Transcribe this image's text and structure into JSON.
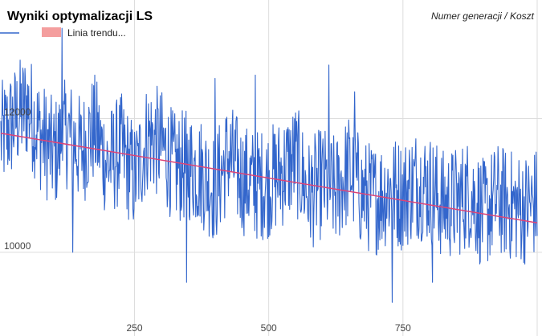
{
  "chart_data": {
    "type": "line",
    "title": "Wyniki optymalizacji LS",
    "subtitle": "Numer generacji / Koszt",
    "x_range": [
      1,
      1000
    ],
    "y_range": [
      9000,
      13400
    ],
    "x_ticks": [
      {
        "value": 250,
        "label": "250"
      },
      {
        "value": 500,
        "label": "500"
      },
      {
        "value": 750,
        "label": "750"
      }
    ],
    "y_ticks": [
      {
        "value": 10000,
        "label": "10000"
      },
      {
        "value": 12000,
        "label": "12000"
      }
    ],
    "grid": true,
    "legend_position": "top-left",
    "series": [
      {
        "name": "",
        "color": "#3366cc",
        "anchors": [
          [
            1,
            11700
          ],
          [
            25,
            11950
          ],
          [
            50,
            12200
          ],
          [
            75,
            11750
          ],
          [
            100,
            11450
          ],
          [
            125,
            11800
          ],
          [
            150,
            11500
          ],
          [
            175,
            11850
          ],
          [
            200,
            11300
          ],
          [
            225,
            11550
          ],
          [
            250,
            11100
          ],
          [
            275,
            11750
          ],
          [
            300,
            11600
          ],
          [
            325,
            11250
          ],
          [
            350,
            11300
          ],
          [
            375,
            11200
          ],
          [
            400,
            10950
          ],
          [
            425,
            11450
          ],
          [
            450,
            11100
          ],
          [
            475,
            11000
          ],
          [
            500,
            11050
          ],
          [
            525,
            11200
          ],
          [
            550,
            11400
          ],
          [
            575,
            10850
          ],
          [
            600,
            11050
          ],
          [
            625,
            10900
          ],
          [
            650,
            11250
          ],
          [
            675,
            10850
          ],
          [
            700,
            10800
          ],
          [
            725,
            10950
          ],
          [
            750,
            10850
          ],
          [
            775,
            11050
          ],
          [
            800,
            10950
          ],
          [
            825,
            10700
          ],
          [
            850,
            10750
          ],
          [
            875,
            10900
          ],
          [
            900,
            10550
          ],
          [
            925,
            10800
          ],
          [
            950,
            10700
          ],
          [
            975,
            10650
          ],
          [
            1000,
            10750
          ]
        ],
        "spread": 850,
        "outliers": [
          {
            "x": 115,
            "y": 13350
          },
          {
            "x": 135,
            "y": 10000
          },
          {
            "x": 347,
            "y": 9550
          },
          {
            "x": 400,
            "y": 12600
          },
          {
            "x": 475,
            "y": 12650
          },
          {
            "x": 612,
            "y": 12800
          },
          {
            "x": 660,
            "y": 12400
          },
          {
            "x": 730,
            "y": 9250
          },
          {
            "x": 805,
            "y": 9550
          }
        ]
      },
      {
        "name": "Linia trendu...",
        "color": "#dd4477",
        "trend": {
          "start": [
            1,
            11780
          ],
          "end": [
            1000,
            10440
          ]
        }
      }
    ]
  }
}
